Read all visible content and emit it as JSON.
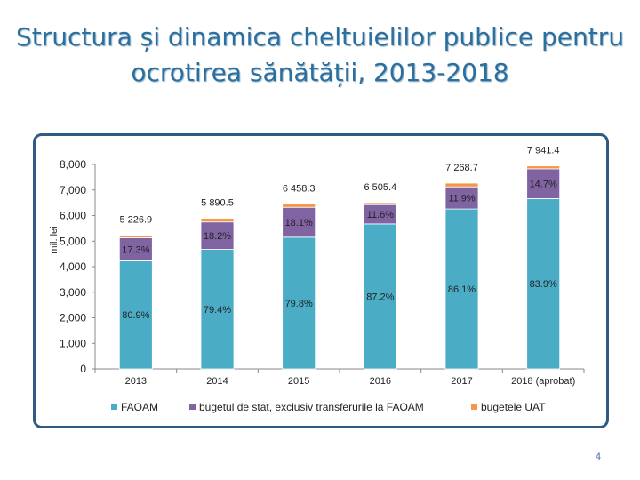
{
  "title": "Structura și dinamica cheltuielilor publice pentru ocrotirea sănătății, 2013-2018",
  "page_number": "4",
  "chart_data": {
    "type": "bar",
    "stacked": true,
    "ylabel": "mil. lei",
    "ylim": [
      0,
      8000
    ],
    "yticks": [
      0,
      1000,
      2000,
      3000,
      4000,
      5000,
      6000,
      7000,
      8000
    ],
    "ytick_labels": [
      "0",
      "1,000",
      "2,000",
      "3,000",
      "4,000",
      "5,000",
      "6,000",
      "7,000",
      "8,000"
    ],
    "categories": [
      "2013",
      "2014",
      "2015",
      "2016",
      "2017",
      "2018 (aprobat)"
    ],
    "totals": [
      5226.9,
      5890.5,
      6458.3,
      6505.4,
      7268.7,
      7941.4
    ],
    "total_labels": [
      "5 226.9",
      "5 890.5",
      "6 458.3",
      "6 505.4",
      "7 268.7",
      "7 941.4"
    ],
    "series": [
      {
        "name": "FAOAM",
        "color": "#4bacc6",
        "values": [
          4228.6,
          4677.1,
          5153.7,
          5672.7,
          6258.4,
          6662.8
        ],
        "labels": [
          "80.9%",
          "79.4%",
          "79.8%",
          "87.2%",
          "86,1%",
          "83.9%"
        ]
      },
      {
        "name": "bugetul de stat, exclusiv transferurile la FAOAM",
        "color": "#8064a2",
        "values": [
          904.3,
          1072.1,
          1168.9,
          754.6,
          865.0,
          1167.4
        ],
        "labels": [
          "17.3%",
          "18.2%",
          "18.1%",
          "11.6%",
          "11.9%",
          "14.7%"
        ]
      },
      {
        "name": "bugetele UAT",
        "color": "#f79646",
        "values": [
          94.0,
          141.3,
          135.7,
          78.1,
          145.3,
          111.2
        ],
        "labels": [
          "",
          "",
          "",
          "",
          "",
          ""
        ]
      }
    ],
    "legend": "bottom"
  }
}
